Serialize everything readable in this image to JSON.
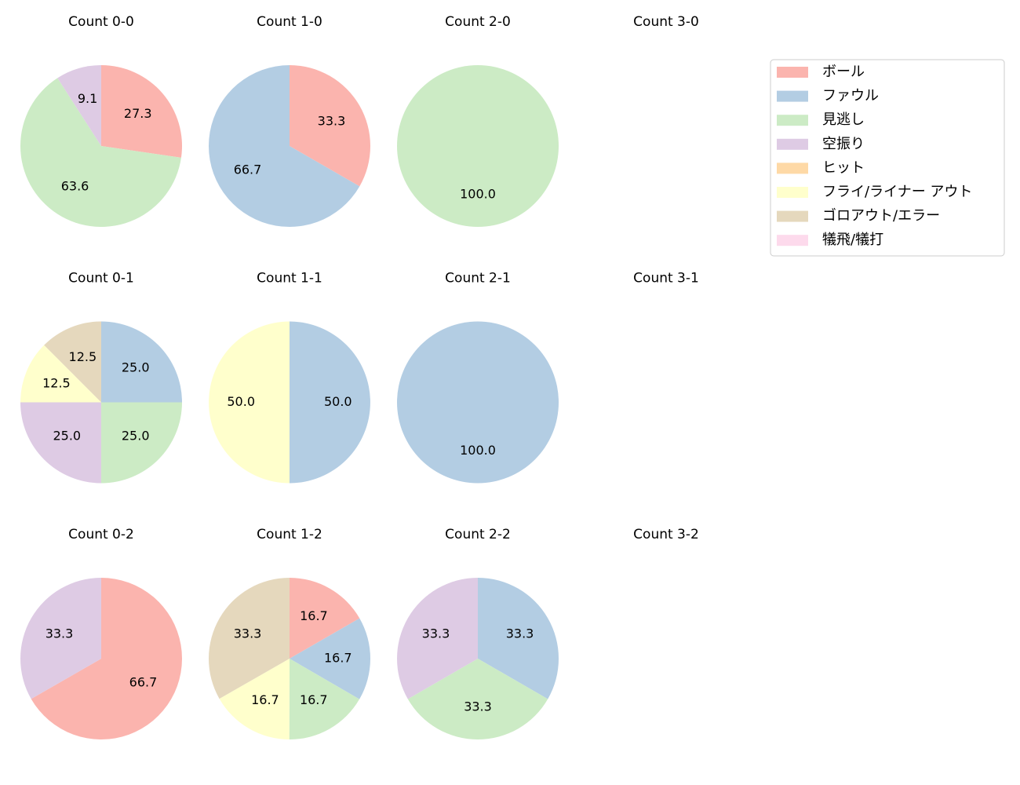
{
  "chart_data": [
    {
      "type": "pie",
      "title": "Count 0-0",
      "categories": [
        "ボール",
        "見逃し",
        "空振り"
      ],
      "values": [
        27.3,
        63.6,
        9.1
      ],
      "value_labels": [
        "27.3",
        "63.6",
        "9.1"
      ],
      "colors": [
        "#fbb4ae",
        "#ccebc5",
        "#decbe4"
      ]
    },
    {
      "type": "pie",
      "title": "Count 1-0",
      "categories": [
        "ボール",
        "ファウル"
      ],
      "values": [
        33.3,
        66.7
      ],
      "value_labels": [
        "33.3",
        "66.7"
      ],
      "colors": [
        "#fbb4ae",
        "#b3cde3"
      ]
    },
    {
      "type": "pie",
      "title": "Count 2-0",
      "categories": [
        "見逃し"
      ],
      "values": [
        100
      ],
      "value_labels": [
        "100.0"
      ],
      "colors": [
        "#ccebc5"
      ]
    },
    {
      "type": "pie",
      "title": "Count 3-0",
      "categories": [],
      "values": [],
      "value_labels": [],
      "colors": []
    },
    {
      "type": "pie",
      "title": "Count 0-1",
      "categories": [
        "ファウル",
        "見逃し",
        "空振り",
        "フライ/ライナー アウト",
        "ゴロアウト/エラー"
      ],
      "values": [
        25,
        25,
        25,
        12.5,
        12.5
      ],
      "value_labels": [
        "25.0",
        "25.0",
        "25.0",
        "12.5",
        "12.5"
      ],
      "colors": [
        "#b3cde3",
        "#ccebc5",
        "#decbe4",
        "#ffffcc",
        "#e5d8bd"
      ]
    },
    {
      "type": "pie",
      "title": "Count 1-1",
      "categories": [
        "ファウル",
        "フライ/ライナー アウト"
      ],
      "values": [
        50,
        50
      ],
      "value_labels": [
        "50.0",
        "50.0"
      ],
      "colors": [
        "#b3cde3",
        "#ffffcc"
      ]
    },
    {
      "type": "pie",
      "title": "Count 2-1",
      "categories": [
        "ファウル"
      ],
      "values": [
        100
      ],
      "value_labels": [
        "100.0"
      ],
      "colors": [
        "#b3cde3"
      ]
    },
    {
      "type": "pie",
      "title": "Count 3-1",
      "categories": [],
      "values": [],
      "value_labels": [],
      "colors": []
    },
    {
      "type": "pie",
      "title": "Count 0-2",
      "categories": [
        "ボール",
        "空振り"
      ],
      "values": [
        66.7,
        33.3
      ],
      "value_labels": [
        "66.7",
        "33.3"
      ],
      "colors": [
        "#fbb4ae",
        "#decbe4"
      ]
    },
    {
      "type": "pie",
      "title": "Count 1-2",
      "categories": [
        "ボール",
        "ファウル",
        "見逃し",
        "フライ/ライナー アウト",
        "ゴロアウト/エラー"
      ],
      "values": [
        16.7,
        16.7,
        16.7,
        16.7,
        33.3
      ],
      "value_labels": [
        "16.7",
        "16.7",
        "16.7",
        "16.7",
        "33.3"
      ],
      "colors": [
        "#fbb4ae",
        "#b3cde3",
        "#ccebc5",
        "#ffffcc",
        "#e5d8bd"
      ]
    },
    {
      "type": "pie",
      "title": "Count 2-2",
      "categories": [
        "ファウル",
        "見逃し",
        "空振り"
      ],
      "values": [
        33.3,
        33.3,
        33.3
      ],
      "value_labels": [
        "33.3",
        "33.3",
        "33.3"
      ],
      "colors": [
        "#b3cde3",
        "#ccebc5",
        "#decbe4"
      ]
    },
    {
      "type": "pie",
      "title": "Count 3-2",
      "categories": [],
      "values": [],
      "value_labels": [],
      "colors": []
    }
  ],
  "legend": {
    "position": "upper right",
    "labels": [
      "ボール",
      "ファウル",
      "見逃し",
      "空振り",
      "ヒット",
      "フライ/ライナー アウト",
      "ゴロアウト/エラー",
      "犠飛/犠打"
    ],
    "colors": [
      "#fbb4ae",
      "#b3cde3",
      "#ccebc5",
      "#decbe4",
      "#fed9a6",
      "#ffffcc",
      "#e5d8bd",
      "#fddaec"
    ]
  }
}
